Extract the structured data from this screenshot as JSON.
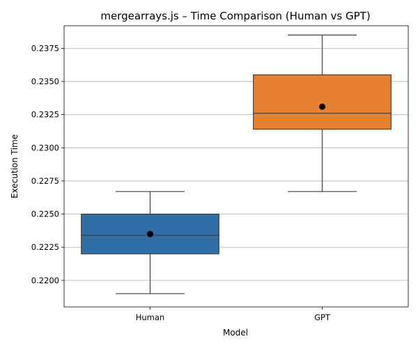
{
  "chart_data": {
    "type": "box",
    "title": "mergearrays.js – Time Comparison (Human vs GPT)",
    "xlabel": "Model",
    "ylabel": "Execution Time",
    "categories": [
      "Human",
      "GPT"
    ],
    "ylim": [
      0.218,
      0.2392
    ],
    "yticks": [
      0.22,
      0.2225,
      0.225,
      0.2275,
      0.23,
      0.2325,
      0.235,
      0.2375
    ],
    "ytick_labels": [
      "0.2200",
      "0.2225",
      "0.2250",
      "0.2275",
      "0.2300",
      "0.2325",
      "0.2350",
      "0.2375"
    ],
    "grid": "y-major",
    "series": [
      {
        "category": "Human",
        "color": "#2f6ea6",
        "whisker_low": 0.219,
        "q1": 0.222,
        "median": 0.2234,
        "q3": 0.225,
        "whisker_high": 0.2267,
        "mean": 0.2235
      },
      {
        "category": "GPT",
        "color": "#e6812f",
        "whisker_low": 0.2267,
        "q1": 0.2314,
        "median": 0.2326,
        "q3": 0.2355,
        "whisker_high": 0.2385,
        "mean": 0.2331
      }
    ]
  }
}
